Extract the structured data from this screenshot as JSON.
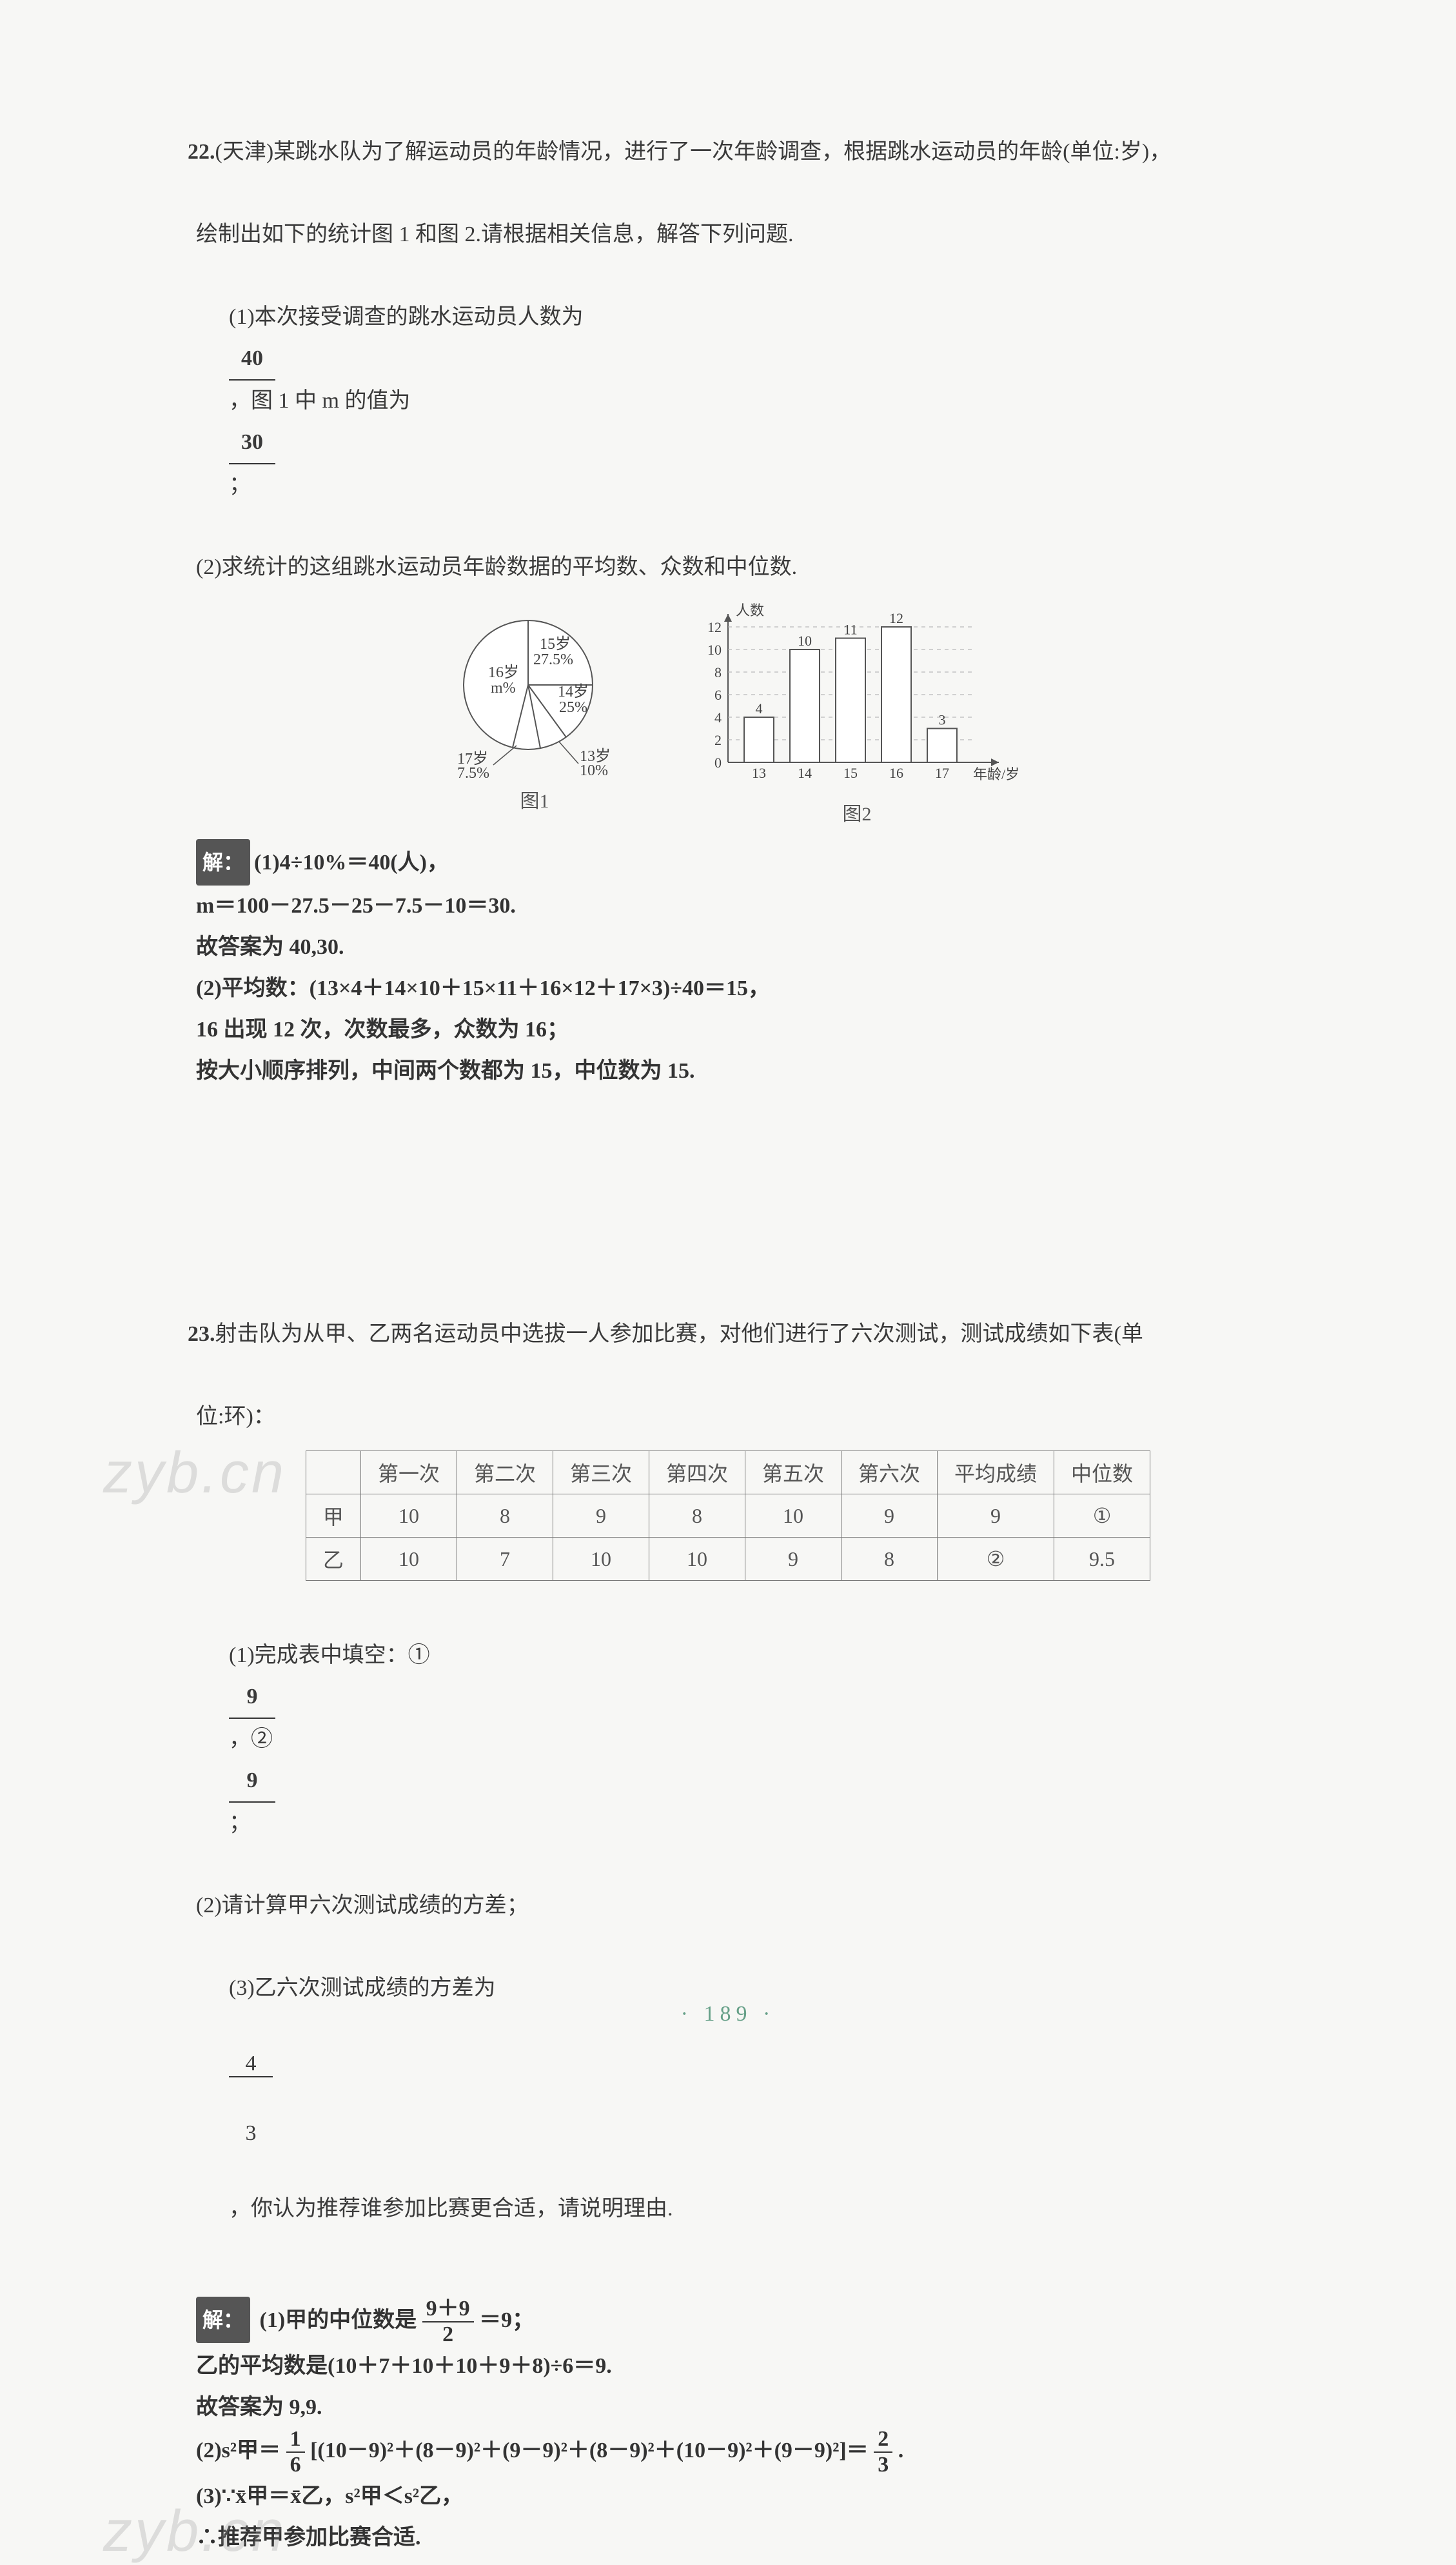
{
  "q22": {
    "number": "22.",
    "source": "(天津)",
    "intro1": "某跳水队为了解运动员的年龄情况，进行了一次年龄调查，根据跳水运动员的年龄(单位:岁)，",
    "intro2": "绘制出如下的统计图 1 和图 2.请根据相关信息，解答下列问题.",
    "p1_a": "(1)本次接受调查的跳水运动员人数为",
    "p1_ans1": "40",
    "p1_b": "，图 1 中 m 的值为",
    "p1_ans2": "30",
    "p1_c": "；",
    "p2": "(2)求统计的这组跳水运动员年龄数据的平均数、众数和中位数.",
    "pie": {
      "labels": [
        {
          "text": "15岁",
          "pct": "27.5%"
        },
        {
          "text": "14岁",
          "pct": "25%"
        },
        {
          "text": "13岁",
          "pct": "10%"
        },
        {
          "text": "17岁",
          "pct": "7.5%"
        },
        {
          "text": "16岁",
          "pct": "m%"
        }
      ],
      "caption": "图1",
      "colors": {
        "stroke": "#555",
        "fill": "#ffffff"
      }
    },
    "bar": {
      "y_label": "人数",
      "x_label": "年龄/岁",
      "y_ticks": [
        0,
        2,
        4,
        6,
        8,
        10,
        12
      ],
      "x_ticks": [
        13,
        14,
        15,
        16,
        17
      ],
      "values": [
        4,
        10,
        11,
        12,
        3
      ],
      "value_labels": [
        "4",
        "10",
        "11",
        "12",
        "3"
      ],
      "caption": "图2",
      "colors": {
        "bar_fill": "#ffffff",
        "bar_stroke": "#555",
        "axis": "#555",
        "grid": "#aaaaaa"
      }
    },
    "sol_label": "解：",
    "sol1": "(1)4÷10%＝40(人)，",
    "sol2": "m＝100－27.5－25－7.5－10＝30.",
    "sol3": "故答案为 40,30.",
    "sol4": "(2)平均数：(13×4＋14×10＋15×11＋16×12＋17×3)÷40＝15，",
    "sol5": "16 出现 12 次，次数最多，众数为 16；",
    "sol6": "按大小顺序排列，中间两个数都为 15，中位数为 15."
  },
  "q23": {
    "number": "23.",
    "intro1": "射击队为从甲、乙两名运动员中选拔一人参加比赛，对他们进行了六次测试，测试成绩如下表(单",
    "intro2": "位:环)：",
    "table": {
      "headers": [
        "",
        "第一次",
        "第二次",
        "第三次",
        "第四次",
        "第五次",
        "第六次",
        "平均成绩",
        "中位数"
      ],
      "rows": [
        [
          "甲",
          "10",
          "8",
          "9",
          "8",
          "10",
          "9",
          "9",
          "①"
        ],
        [
          "乙",
          "10",
          "7",
          "10",
          "10",
          "9",
          "8",
          "②",
          "9.5"
        ]
      ]
    },
    "p1_a": "(1)完成表中填空：①",
    "p1_ans1": "9",
    "p1_b": "，②",
    "p1_ans2": "9",
    "p1_c": "；",
    "p2": "(2)请计算甲六次测试成绩的方差；",
    "p3_a": "(3)乙六次测试成绩的方差为",
    "p3_frac_n": "4",
    "p3_frac_d": "3",
    "p3_b": "，你认为推荐谁参加比赛更合适，请说明理由.",
    "sol_label": "解：",
    "sol1_a": "(1)甲的中位数是",
    "sol1_frac_n": "9＋9",
    "sol1_frac_d": "2",
    "sol1_b": "＝9；",
    "sol2": "乙的平均数是(10＋7＋10＋10＋9＋8)÷6＝9.",
    "sol3": "故答案为 9,9.",
    "sol4_a": "(2)s²甲＝",
    "sol4_frac1_n": "1",
    "sol4_frac1_d": "6",
    "sol4_b": "[(10－9)²＋(8－9)²＋(9－9)²＋(8－9)²＋(10－9)²＋(9－9)²]＝",
    "sol4_frac2_n": "2",
    "sol4_frac2_d": "3",
    "sol4_c": ".",
    "sol5": "(3)∵x̄甲＝x̄乙，s²甲＜s²乙，",
    "sol6": "∴推荐甲参加比赛合适."
  },
  "footer": {
    "page": "· 189 ·"
  },
  "watermarks": {
    "w1": "zyb.cn",
    "w2": "zyb.cn"
  }
}
